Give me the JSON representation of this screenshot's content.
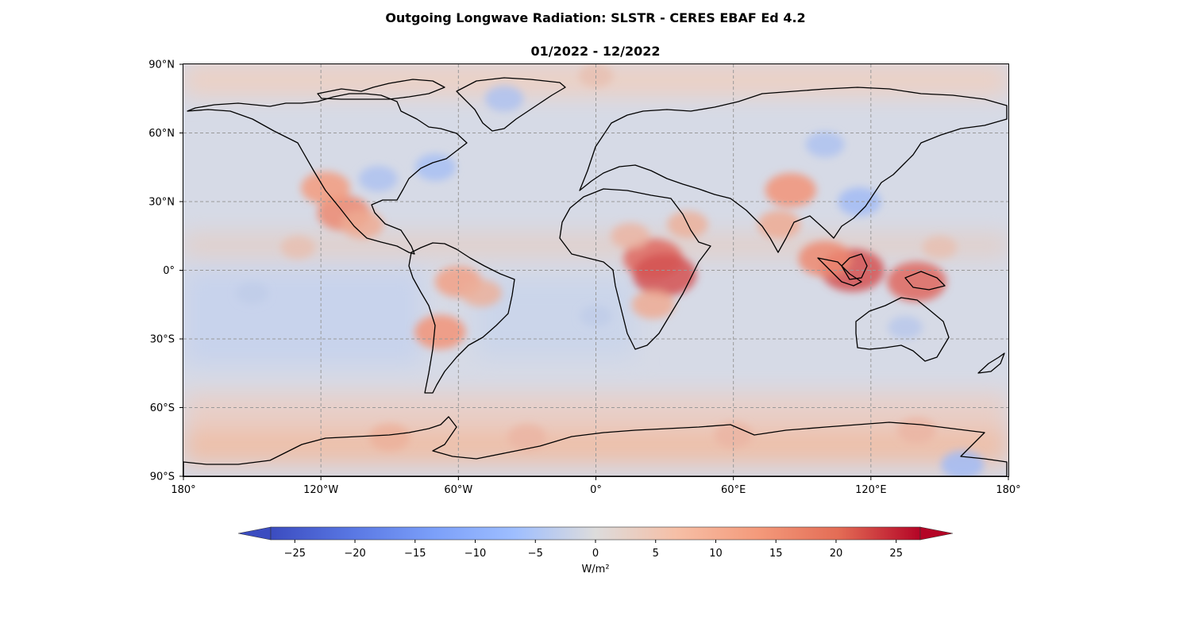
{
  "title": "Outgoing Longwave Radiation: SLSTR - CERES EBAF Ed 4.2",
  "subtitle": "01/2022 - 12/2022",
  "map": {
    "projection": "PlateCarree",
    "lat_ticks": [
      {
        "value": 90,
        "label": "90°N"
      },
      {
        "value": 60,
        "label": "60°N"
      },
      {
        "value": 30,
        "label": "30°N"
      },
      {
        "value": 0,
        "label": "0°"
      },
      {
        "value": -30,
        "label": "30°S"
      },
      {
        "value": -60,
        "label": "60°S"
      },
      {
        "value": -90,
        "label": "90°S"
      }
    ],
    "lon_ticks": [
      {
        "value": -180,
        "label": "180°"
      },
      {
        "value": -120,
        "label": "120°W"
      },
      {
        "value": -60,
        "label": "60°W"
      },
      {
        "value": 0,
        "label": "0°"
      },
      {
        "value": 60,
        "label": "60°E"
      },
      {
        "value": 120,
        "label": "120°E"
      },
      {
        "value": 180,
        "label": "180°"
      }
    ],
    "gridlines": true
  },
  "chart_data": {
    "type": "heatmap",
    "title": "Outgoing Longwave Radiation: SLSTR - CERES EBAF Ed 4.2",
    "subtitle": "01/2022 - 12/2022",
    "xlim": [
      -180,
      180
    ],
    "ylim": [
      -90,
      90
    ],
    "colormap": "coolwarm",
    "color_range": [
      -27,
      27
    ],
    "colorbar": {
      "label": "W/m²",
      "extend": "both",
      "orientation": "horizontal",
      "placement": "bottom",
      "ticks": [
        {
          "value": -25,
          "label": "−25"
        },
        {
          "value": -20,
          "label": "−20"
        },
        {
          "value": -15,
          "label": "−15"
        },
        {
          "value": -10,
          "label": "−10"
        },
        {
          "value": -5,
          "label": "−5"
        },
        {
          "value": 0,
          "label": "0"
        },
        {
          "value": 5,
          "label": "5"
        },
        {
          "value": 10,
          "label": "10"
        },
        {
          "value": 15,
          "label": "15"
        },
        {
          "value": 20,
          "label": "20"
        },
        {
          "value": 25,
          "label": "25"
        }
      ]
    },
    "colors": {
      "low": "#3b4cc0",
      "mid": "#dddddd",
      "high": "#b40426"
    },
    "regions": [
      {
        "lon": -110,
        "lat": 25,
        "value": 15
      },
      {
        "lon": -118,
        "lat": 36,
        "value": 13
      },
      {
        "lon": -102,
        "lat": 20,
        "value": 10
      },
      {
        "lon": -60,
        "lat": -5,
        "value": 12
      },
      {
        "lon": -68,
        "lat": -27,
        "value": 14
      },
      {
        "lon": -50,
        "lat": -10,
        "value": 9
      },
      {
        "lon": 25,
        "lat": 5,
        "value": 18
      },
      {
        "lon": 30,
        "lat": -2,
        "value": 20
      },
      {
        "lon": 15,
        "lat": 15,
        "value": 8
      },
      {
        "lon": 25,
        "lat": -15,
        "value": 10
      },
      {
        "lon": 40,
        "lat": 20,
        "value": 9
      },
      {
        "lon": 85,
        "lat": 35,
        "value": 14
      },
      {
        "lon": 80,
        "lat": 20,
        "value": 10
      },
      {
        "lon": 112,
        "lat": 0,
        "value": 20
      },
      {
        "lon": 100,
        "lat": 5,
        "value": 15
      },
      {
        "lon": 140,
        "lat": -5,
        "value": 18
      },
      {
        "lon": -95,
        "lat": 40,
        "value": -8
      },
      {
        "lon": -70,
        "lat": 45,
        "value": -9
      },
      {
        "lon": -40,
        "lat": 75,
        "value": -8
      },
      {
        "lon": 115,
        "lat": 30,
        "value": -10
      },
      {
        "lon": 100,
        "lat": 55,
        "value": -8
      },
      {
        "lon": 135,
        "lat": -25,
        "value": -6
      },
      {
        "lon": -150,
        "lat": -10,
        "value": -5
      },
      {
        "lon": 0,
        "lat": -20,
        "value": -5
      },
      {
        "lon": 160,
        "lat": -85,
        "value": -10
      },
      {
        "lon": -90,
        "lat": -73,
        "value": 9
      },
      {
        "lon": -30,
        "lat": -73,
        "value": 8
      },
      {
        "lon": 60,
        "lat": -72,
        "value": 8
      },
      {
        "lon": 140,
        "lat": -70,
        "value": 8
      },
      {
        "lon": -130,
        "lat": 10,
        "value": 6
      },
      {
        "lon": 150,
        "lat": 10,
        "value": 6
      },
      {
        "lon": 0,
        "lat": 85,
        "value": 6
      }
    ]
  }
}
